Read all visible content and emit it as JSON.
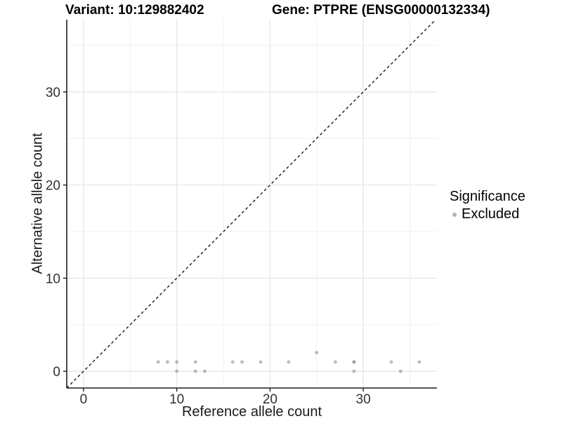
{
  "titles": {
    "variant": "Variant: 10:129882402",
    "gene": "Gene: PTPRE (ENSG00000132334)"
  },
  "chart_data": {
    "type": "scatter",
    "title_variant": "Variant: 10:129882402",
    "title_gene": "Gene: PTPRE (ENSG00000132334)",
    "xlabel": "Reference allele count",
    "ylabel": "Alternative allele count",
    "xlim": [
      -1.8,
      37.9
    ],
    "ylim": [
      -1.8,
      37.76
    ],
    "xticks": [
      0,
      10,
      20,
      30
    ],
    "yticks": [
      0,
      10,
      20,
      30
    ],
    "xgrid_minor": [
      5,
      15,
      25,
      35
    ],
    "ygrid_minor": [
      5,
      15,
      25,
      35
    ],
    "grid": true,
    "legend_position": "right",
    "reference_line": {
      "style": "dashed",
      "equation": "y = x",
      "color": "#1a1a1a"
    },
    "series": [
      {
        "name": "Excluded",
        "color": "#7f7f7f",
        "points": [
          {
            "x": 8,
            "y": 1
          },
          {
            "x": 9,
            "y": 1
          },
          {
            "x": 10,
            "y": 1
          },
          {
            "x": 10,
            "y": 0
          },
          {
            "x": 12,
            "y": 1
          },
          {
            "x": 12,
            "y": 0
          },
          {
            "x": 13,
            "y": 0
          },
          {
            "x": 16,
            "y": 1
          },
          {
            "x": 17,
            "y": 1
          },
          {
            "x": 19,
            "y": 1
          },
          {
            "x": 22,
            "y": 1
          },
          {
            "x": 25,
            "y": 2
          },
          {
            "x": 27,
            "y": 1
          },
          {
            "x": 29,
            "y": 1,
            "n": 2
          },
          {
            "x": 29,
            "y": 0
          },
          {
            "x": 33,
            "y": 1
          },
          {
            "x": 34,
            "y": 0
          },
          {
            "x": 36,
            "y": 1
          }
        ]
      }
    ],
    "legend": {
      "title": "Significance",
      "items": [
        {
          "label": "Excluded",
          "color": "#b2b2b2"
        }
      ]
    },
    "colors": {
      "grid_major": "#e4e4e4",
      "grid_minor": "#f0f0f0",
      "axis_line": "#1f1f1f",
      "tick_label": "#303030",
      "point": "#7f7f7f"
    }
  }
}
